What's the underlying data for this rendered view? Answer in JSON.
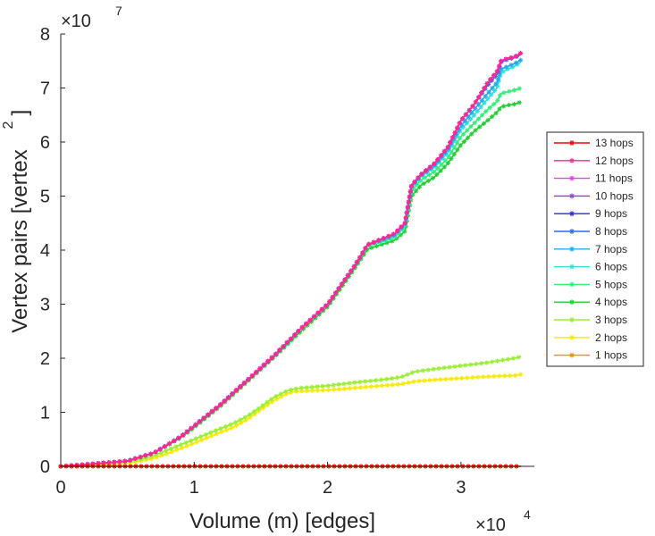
{
  "chart_data": {
    "type": "line",
    "xlabel": "Volume (m) [edges]",
    "ylabel": "Vertex pairs [vertex",
    "ylabel_superscript": "2",
    "ylabel_suffix": "]",
    "x_multiplier": "×10",
    "x_exponent": "4",
    "y_multiplier": "×10",
    "y_exponent": "7",
    "xlim": [
      0,
      35500
    ],
    "ylim": [
      0,
      80000000
    ],
    "x_ticks": [
      0,
      10000,
      20000,
      30000
    ],
    "x_tick_labels": [
      "0",
      "1",
      "2",
      "3"
    ],
    "y_ticks": [
      0,
      10000000,
      20000000,
      30000000,
      40000000,
      50000000,
      60000000,
      70000000,
      80000000
    ],
    "y_tick_labels": [
      "0",
      "1",
      "2",
      "3",
      "4",
      "5",
      "6",
      "7",
      "8"
    ],
    "grid": false,
    "legend_position": "right",
    "marker": "asterisk",
    "series": [
      {
        "name": "13 hops",
        "color": "#ff0000",
        "x": [
          0,
          34500
        ],
        "y": [
          0,
          0
        ]
      },
      {
        "name": "12 hops",
        "color": "#ff2a8a",
        "x": [
          0,
          5000,
          7000,
          9000,
          10000,
          12000,
          14000,
          16000,
          18000,
          20000,
          21000,
          22000,
          23000,
          24000,
          25000,
          25800,
          26300,
          27000,
          28000,
          29000,
          30000,
          31000,
          32000,
          32700,
          33000,
          33500,
          34000,
          34500
        ],
        "y": [
          0,
          1000000,
          2500000,
          5500000,
          7500000,
          11500000,
          16000000,
          20500000,
          25500000,
          30000000,
          33500000,
          37000000,
          41000000,
          42000000,
          43000000,
          45000000,
          52000000,
          54000000,
          56000000,
          59000000,
          64000000,
          67000000,
          71000000,
          73000000,
          75000000,
          75500000,
          75700000,
          76500000
        ]
      },
      {
        "name": "11 hops",
        "color": "#ff33ff",
        "x": [
          0,
          5000,
          7000,
          9000,
          10000,
          12000,
          14000,
          16000,
          18000,
          20000,
          21000,
          22000,
          23000,
          24000,
          25000,
          25800,
          26300,
          27000,
          28000,
          29000,
          30000,
          31000,
          32000,
          32700,
          33000,
          33500,
          34000,
          34500
        ],
        "y": [
          0,
          1000000,
          2500000,
          5500000,
          7500000,
          11500000,
          16000000,
          20500000,
          25500000,
          30000000,
          33500000,
          37000000,
          41000000,
          42000000,
          43000000,
          45000000,
          52000000,
          54000000,
          56000000,
          59000000,
          64000000,
          67000000,
          71000000,
          73000000,
          75000000,
          75500000,
          75700000,
          76500000
        ]
      },
      {
        "name": "10 hops",
        "color": "#9a36e8",
        "x": [
          0,
          5000,
          7000,
          9000,
          10000,
          12000,
          14000,
          16000,
          18000,
          20000,
          21000,
          22000,
          23000,
          24000,
          25000,
          25800,
          26300,
          27000,
          28000,
          29000,
          30000,
          31000,
          32000,
          32700,
          33000,
          33500,
          34000,
          34500
        ],
        "y": [
          0,
          1000000,
          2500000,
          5500000,
          7500000,
          11500000,
          16000000,
          20500000,
          25500000,
          30000000,
          33500000,
          37000000,
          41000000,
          42000000,
          43000000,
          45000000,
          52000000,
          54000000,
          56000000,
          59000000,
          64000000,
          67000000,
          71000000,
          73000000,
          75000000,
          75500000,
          75700000,
          76500000
        ]
      },
      {
        "name": "9 hops",
        "color": "#2a2ad6",
        "x": [
          0,
          5000,
          7000,
          9000,
          10000,
          12000,
          14000,
          16000,
          18000,
          20000,
          21000,
          22000,
          23000,
          24000,
          25000,
          25800,
          26300,
          27000,
          28000,
          29000,
          30000,
          31000,
          32000,
          32700,
          33000,
          33500,
          34000,
          34500
        ],
        "y": [
          0,
          1000000,
          2500000,
          5500000,
          7500000,
          11500000,
          16000000,
          20500000,
          25500000,
          30000000,
          33500000,
          37000000,
          41000000,
          42000000,
          43000000,
          45000000,
          52000000,
          54000000,
          56000000,
          59000000,
          64000000,
          67000000,
          71000000,
          73000000,
          75000000,
          75500000,
          75700000,
          76500000
        ]
      },
      {
        "name": "8 hops",
        "color": "#2f6be0",
        "x": [
          0,
          5000,
          7000,
          9000,
          10000,
          12000,
          14000,
          16000,
          18000,
          20000,
          21000,
          22000,
          23000,
          24000,
          25000,
          25800,
          26300,
          27000,
          28000,
          29000,
          30000,
          31000,
          32000,
          32700,
          33000,
          33500,
          34000,
          34500
        ],
        "y": [
          0,
          1000000,
          2500000,
          5500000,
          7500000,
          11500000,
          16000000,
          20500000,
          25500000,
          30000000,
          33500000,
          37000000,
          41000000,
          42000000,
          43000000,
          45000000,
          52000000,
          54000000,
          56000000,
          59000000,
          64000000,
          67000000,
          70500000,
          72500000,
          74800000,
          75300000,
          75600000,
          76200000
        ]
      },
      {
        "name": "7 hops",
        "color": "#22aaee",
        "x": [
          0,
          5000,
          7000,
          9000,
          10000,
          12000,
          14000,
          16000,
          18000,
          20000,
          21000,
          22000,
          23000,
          24000,
          25000,
          25800,
          26300,
          27000,
          28000,
          29000,
          30000,
          31000,
          32000,
          32700,
          33000,
          33500,
          34000,
          34500
        ],
        "y": [
          0,
          1000000,
          2500000,
          5500000,
          7500000,
          11500000,
          16000000,
          20500000,
          25500000,
          30000000,
          33500000,
          37000000,
          41000000,
          41800000,
          42800000,
          44800000,
          51800000,
          53800000,
          55600000,
          58500000,
          63000000,
          66000000,
          69000000,
          71000000,
          73500000,
          74000000,
          74500000,
          75200000
        ]
      },
      {
        "name": "6 hops",
        "color": "#33dddd",
        "x": [
          0,
          5000,
          7000,
          9000,
          10000,
          12000,
          14000,
          16000,
          18000,
          20000,
          21000,
          22000,
          23000,
          24000,
          25000,
          25800,
          26300,
          27000,
          28000,
          29000,
          30000,
          31000,
          32000,
          32700,
          33000,
          33500,
          34000,
          34500
        ],
        "y": [
          0,
          1000000,
          2500000,
          5500000,
          7500000,
          11500000,
          16000000,
          20500000,
          25500000,
          30000000,
          33500000,
          37000000,
          41000000,
          41700000,
          42600000,
          44600000,
          51600000,
          53600000,
          55300000,
          58000000,
          62300000,
          65000000,
          68000000,
          70000000,
          72800000,
          73500000,
          74000000,
          74800000
        ]
      },
      {
        "name": "5 hops",
        "color": "#33ee77",
        "x": [
          0,
          5000,
          7000,
          9000,
          10000,
          12000,
          14000,
          16000,
          18000,
          20000,
          21000,
          22000,
          23000,
          24000,
          25000,
          25800,
          26300,
          27000,
          28000,
          29000,
          30000,
          31000,
          32000,
          32700,
          33000,
          33500,
          34000,
          34500
        ],
        "y": [
          0,
          1000000,
          2500000,
          5500000,
          7500000,
          11500000,
          16000000,
          20500000,
          25500000,
          30000000,
          33500000,
          37000000,
          40800000,
          41500000,
          42300000,
          44300000,
          51000000,
          53000000,
          54500000,
          57000000,
          61000000,
          63500000,
          66000000,
          67500000,
          69000000,
          69300000,
          69600000,
          70000000
        ]
      },
      {
        "name": "4 hops",
        "color": "#22cc33",
        "x": [
          0,
          5000,
          7000,
          9000,
          10000,
          12000,
          14000,
          16000,
          18000,
          20000,
          21000,
          22000,
          23000,
          24000,
          25000,
          25800,
          26300,
          27000,
          28000,
          29000,
          30000,
          31000,
          32000,
          32700,
          33000,
          33500,
          34000,
          34500
        ],
        "y": [
          0,
          1000000,
          2500000,
          5300000,
          7200000,
          11200000,
          15700000,
          20200000,
          25000000,
          29500000,
          33000000,
          36500000,
          40200000,
          41000000,
          41800000,
          43500000,
          50000000,
          52000000,
          53500000,
          56000000,
          59500000,
          62000000,
          64000000,
          65500000,
          66500000,
          66800000,
          67000000,
          67400000
        ]
      },
      {
        "name": "3 hops",
        "color": "#99ee33",
        "x": [
          0,
          4000,
          5000,
          6000,
          7000,
          8000,
          9000,
          10000,
          11000,
          12000,
          13000,
          14000,
          15000,
          16000,
          17000,
          17500,
          18000,
          20000,
          22000,
          24000,
          25500,
          26500,
          28000,
          30000,
          32000,
          33000,
          34000,
          34500
        ],
        "y": [
          0,
          500000,
          900000,
          1300000,
          2000000,
          3000000,
          4000000,
          5000000,
          6000000,
          7000000,
          8000000,
          9300000,
          11000000,
          12800000,
          14000000,
          14300000,
          14500000,
          14900000,
          15500000,
          16000000,
          16500000,
          17500000,
          18000000,
          18600000,
          19200000,
          19600000,
          20000000,
          20300000
        ]
      },
      {
        "name": "2 hops",
        "color": "#f7ea00",
        "x": [
          0,
          4000,
          5000,
          6000,
          7000,
          8000,
          9000,
          10000,
          11000,
          12000,
          13000,
          14000,
          15000,
          16000,
          17000,
          17500,
          18000,
          20000,
          22000,
          24000,
          25500,
          26500,
          28000,
          30000,
          32000,
          33000,
          34000,
          34500
        ],
        "y": [
          0,
          300000,
          600000,
          1000000,
          1500000,
          2400000,
          3300000,
          4300000,
          5300000,
          6300000,
          7300000,
          8700000,
          10500000,
          12200000,
          13500000,
          13800000,
          13900000,
          14100000,
          14500000,
          14900000,
          15200000,
          15700000,
          16000000,
          16300000,
          16600000,
          16700000,
          16800000,
          17000000
        ]
      },
      {
        "name": "1 hops",
        "color": "#ff8800",
        "x": [
          0,
          34500
        ],
        "y": [
          0,
          0
        ]
      }
    ]
  }
}
